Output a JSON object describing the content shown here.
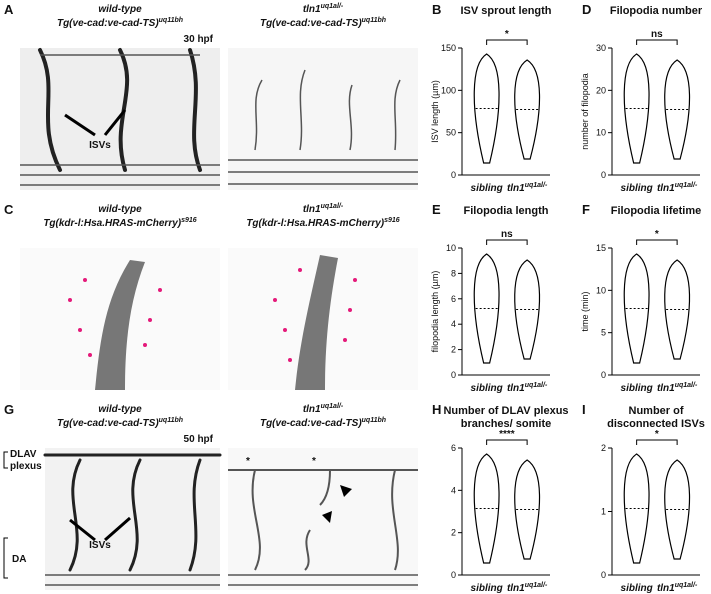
{
  "images": [
    {
      "letter": "A",
      "left": [
        {
          "name": "wild-type"
        },
        {
          "name": "Tg(ve-cad:ve-cad-TS)",
          "sup": "uq11bh"
        }
      ],
      "right": [
        {
          "name": "tln1",
          "sup": "uq1al/-"
        },
        {
          "name": "Tg(ve-cad:ve-cad-TS)",
          "sup": "uq11bh"
        }
      ],
      "stage": "30 hpf",
      "arrow_label": "ISVs"
    },
    {
      "letter": "C",
      "left": [
        {
          "name": "wild-type"
        },
        {
          "name": "Tg(kdr-l:Hsa.HRAS-mCherry)",
          "sup": "s916"
        }
      ],
      "right": [
        {
          "name": "tln1",
          "sup": "uq1al/-"
        },
        {
          "name": "Tg(kdr-l:Hsa.HRAS-mCherry)",
          "sup": "s916"
        }
      ]
    },
    {
      "letter": "G",
      "left": [
        {
          "name": "wild-type"
        },
        {
          "name": "Tg(ve-cad:ve-cad-TS)",
          "sup": "uq11bh"
        }
      ],
      "right": [
        {
          "name": "tln1",
          "sup": "uq1al/-"
        },
        {
          "name": "Tg(ve-cad:ve-cad-TS)",
          "sup": "uq11bh"
        }
      ],
      "stage": "50 hpf",
      "arrow_label": "ISVs",
      "side_labels": [
        "DLAV",
        "plexus",
        "DA"
      ],
      "stars": [
        "*",
        "*"
      ]
    }
  ],
  "plots": [
    {
      "letter": "B",
      "title": [
        "ISV sprout length"
      ],
      "ylabel": "ISV length (µm)",
      "ylim": [
        0,
        150
      ],
      "yticks": [
        0,
        50,
        100,
        150
      ],
      "categories": [
        {
          "name": "sibling"
        },
        {
          "name": "tln1",
          "sup": "uq1al/-"
        }
      ],
      "significance": "*"
    },
    {
      "letter": "D",
      "title": [
        "Filopodia number"
      ],
      "ylabel": "number of filopodia",
      "ylim": [
        0,
        30
      ],
      "yticks": [
        0,
        10,
        20,
        30
      ],
      "categories": [
        {
          "name": "sibling"
        },
        {
          "name": "tln1",
          "sup": "uq1al/-"
        }
      ],
      "significance": "ns"
    },
    {
      "letter": "E",
      "title": [
        "Filopodia length"
      ],
      "ylabel": "filopodia length (µm)",
      "ylim": [
        0,
        10
      ],
      "yticks": [
        0,
        2,
        4,
        6,
        8,
        10
      ],
      "categories": [
        {
          "name": "sibling"
        },
        {
          "name": "tln1",
          "sup": "uq1al/-"
        }
      ],
      "significance": "ns"
    },
    {
      "letter": "F",
      "title": [
        "Filopodia lifetime"
      ],
      "ylabel": "time (min)",
      "ylim": [
        0,
        15
      ],
      "yticks": [
        0,
        5,
        10,
        15
      ],
      "categories": [
        {
          "name": "sibling"
        },
        {
          "name": "tln1",
          "sup": "uq1al/-"
        }
      ],
      "significance": "*"
    },
    {
      "letter": "H",
      "title": [
        "Number of DLAV plexus",
        "branches/ somite"
      ],
      "ylim": [
        0,
        6
      ],
      "yticks": [
        0,
        2,
        4,
        6
      ],
      "categories": [
        {
          "name": "sibling"
        },
        {
          "name": "tln1",
          "sup": "uq1al/-"
        }
      ],
      "significance": "****"
    },
    {
      "letter": "I",
      "title": [
        "Number of",
        "disconnected ISVs"
      ],
      "ylim": [
        0,
        2
      ],
      "yticks": [
        0,
        1,
        2
      ],
      "categories": [
        {
          "name": "sibling"
        },
        {
          "name": "tln1",
          "sup": "uq1al/-"
        }
      ],
      "significance": "*"
    }
  ]
}
